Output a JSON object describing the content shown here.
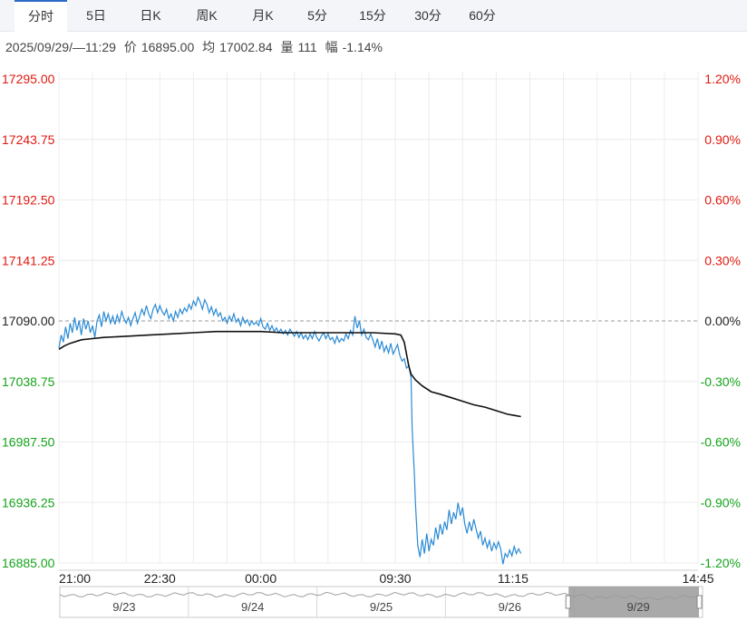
{
  "tabs": [
    {
      "label": "分时",
      "active": true
    },
    {
      "label": "5日",
      "active": false
    },
    {
      "label": "日K",
      "active": false
    },
    {
      "label": "周K",
      "active": false
    },
    {
      "label": "月K",
      "active": false
    },
    {
      "label": "5分",
      "active": false
    },
    {
      "label": "15分",
      "active": false
    },
    {
      "label": "30分",
      "active": false
    },
    {
      "label": "60分",
      "active": false
    }
  ],
  "info": {
    "datetime": "2025/09/29/—11:29",
    "price_label": "价",
    "price": "16895.00",
    "avg_label": "均",
    "avg": "17002.84",
    "volume_label": "量",
    "volume": "111",
    "change_label": "幅",
    "change": "-1.14%"
  },
  "colors": {
    "up": "#e0190f",
    "down": "#14a31a",
    "price_line": "#2a8ad4",
    "avg_line": "#111111",
    "grid": "#ececec",
    "navigator_fill": "#9a9a9a"
  },
  "chart_data": {
    "type": "line",
    "reference_price": 17090.0,
    "y_ticks_left": [
      "17295.00",
      "17243.75",
      "17192.50",
      "17141.25",
      "17090.00",
      "17038.75",
      "16987.50",
      "16936.25",
      "16885.00"
    ],
    "y_ticks_right": [
      "1.20%",
      "0.90%",
      "0.60%",
      "0.30%",
      "0.00%",
      "-0.30%",
      "-0.60%",
      "-0.90%",
      "-1.20%"
    ],
    "ylim": [
      16885.0,
      17295.0
    ],
    "x_tick_labels": [
      "21:00",
      "22:30",
      "00:00",
      "09:30",
      "11:15",
      "14:45"
    ],
    "session_total_minutes": 570,
    "x_tick_minutes": [
      0,
      90,
      180,
      300,
      405,
      570
    ],
    "series": [
      {
        "name": "",
        "points": [
          [
            0,
            17067
          ],
          [
            2,
            17078
          ],
          [
            4,
            17072
          ],
          [
            6,
            17085
          ],
          [
            8,
            17075
          ],
          [
            10,
            17088
          ],
          [
            12,
            17080
          ],
          [
            14,
            17093
          ],
          [
            16,
            17082
          ],
          [
            18,
            17090
          ],
          [
            20,
            17078
          ],
          [
            22,
            17092
          ],
          [
            24,
            17083
          ],
          [
            26,
            17090
          ],
          [
            28,
            17080
          ],
          [
            30,
            17086
          ],
          [
            32,
            17076
          ],
          [
            34,
            17090
          ],
          [
            36,
            17095
          ],
          [
            38,
            17085
          ],
          [
            40,
            17098
          ],
          [
            42,
            17090
          ],
          [
            44,
            17096
          ],
          [
            46,
            17088
          ],
          [
            48,
            17094
          ],
          [
            50,
            17087
          ],
          [
            52,
            17095
          ],
          [
            54,
            17089
          ],
          [
            56,
            17098
          ],
          [
            58,
            17092
          ],
          [
            60,
            17088
          ],
          [
            62,
            17093
          ],
          [
            64,
            17086
          ],
          [
            66,
            17092
          ],
          [
            68,
            17097
          ],
          [
            70,
            17088
          ],
          [
            72,
            17094
          ],
          [
            74,
            17100
          ],
          [
            76,
            17095
          ],
          [
            78,
            17103
          ],
          [
            80,
            17096
          ],
          [
            82,
            17092
          ],
          [
            84,
            17100
          ],
          [
            86,
            17104
          ],
          [
            88,
            17097
          ],
          [
            90,
            17103
          ],
          [
            92,
            17098
          ],
          [
            94,
            17095
          ],
          [
            96,
            17100
          ],
          [
            98,
            17092
          ],
          [
            100,
            17096
          ],
          [
            102,
            17090
          ],
          [
            104,
            17098
          ],
          [
            106,
            17093
          ],
          [
            108,
            17100
          ],
          [
            110,
            17096
          ],
          [
            112,
            17101
          ],
          [
            114,
            17098
          ],
          [
            116,
            17104
          ],
          [
            118,
            17100
          ],
          [
            120,
            17107
          ],
          [
            122,
            17103
          ],
          [
            124,
            17110
          ],
          [
            126,
            17106
          ],
          [
            128,
            17100
          ],
          [
            130,
            17108
          ],
          [
            132,
            17104
          ],
          [
            134,
            17097
          ],
          [
            136,
            17102
          ],
          [
            138,
            17095
          ],
          [
            140,
            17100
          ],
          [
            142,
            17094
          ],
          [
            144,
            17097
          ],
          [
            146,
            17090
          ],
          [
            148,
            17093
          ],
          [
            150,
            17088
          ],
          [
            152,
            17094
          ],
          [
            154,
            17090
          ],
          [
            156,
            17096
          ],
          [
            158,
            17089
          ],
          [
            160,
            17092
          ],
          [
            162,
            17086
          ],
          [
            164,
            17093
          ],
          [
            166,
            17088
          ],
          [
            168,
            17091
          ],
          [
            170,
            17086
          ],
          [
            172,
            17090
          ],
          [
            174,
            17087
          ],
          [
            176,
            17089
          ],
          [
            178,
            17086
          ],
          [
            180,
            17092
          ],
          [
            182,
            17085
          ],
          [
            184,
            17083
          ],
          [
            186,
            17088
          ],
          [
            188,
            17082
          ],
          [
            190,
            17086
          ],
          [
            192,
            17081
          ],
          [
            194,
            17084
          ],
          [
            196,
            17080
          ],
          [
            198,
            17083
          ],
          [
            200,
            17079
          ],
          [
            202,
            17082
          ],
          [
            204,
            17078
          ],
          [
            206,
            17083
          ],
          [
            208,
            17080
          ],
          [
            210,
            17077
          ],
          [
            212,
            17081
          ],
          [
            214,
            17076
          ],
          [
            216,
            17080
          ],
          [
            218,
            17075
          ],
          [
            220,
            17078
          ],
          [
            222,
            17074
          ],
          [
            224,
            17079
          ],
          [
            226,
            17075
          ],
          [
            228,
            17081
          ],
          [
            230,
            17076
          ],
          [
            232,
            17073
          ],
          [
            234,
            17077
          ],
          [
            236,
            17080
          ],
          [
            238,
            17075
          ],
          [
            240,
            17079
          ],
          [
            242,
            17074
          ],
          [
            244,
            17076
          ],
          [
            246,
            17071
          ],
          [
            248,
            17077
          ],
          [
            250,
            17072
          ],
          [
            252,
            17075
          ],
          [
            254,
            17073
          ],
          [
            256,
            17079
          ],
          [
            258,
            17075
          ],
          [
            260,
            17082
          ],
          [
            262,
            17078
          ],
          [
            264,
            17094
          ],
          [
            266,
            17084
          ],
          [
            268,
            17090
          ],
          [
            270,
            17078
          ],
          [
            272,
            17083
          ],
          [
            274,
            17076
          ],
          [
            276,
            17074
          ],
          [
            278,
            17079
          ],
          [
            280,
            17074
          ],
          [
            282,
            17068
          ],
          [
            284,
            17075
          ],
          [
            286,
            17066
          ],
          [
            288,
            17073
          ],
          [
            290,
            17064
          ],
          [
            292,
            17069
          ],
          [
            294,
            17063
          ],
          [
            296,
            17071
          ],
          [
            298,
            17062
          ],
          [
            300,
            17066
          ],
          [
            302,
            17070
          ],
          [
            304,
            17061
          ],
          [
            306,
            17056
          ],
          [
            308,
            17058
          ],
          [
            310,
            17050
          ],
          [
            312,
            17052
          ],
          [
            314,
            17042
          ],
          [
            315,
            17000
          ],
          [
            316,
            16980
          ],
          [
            317,
            16960
          ],
          [
            318,
            16935
          ],
          [
            320,
            16900
          ],
          [
            322,
            16890
          ],
          [
            324,
            16905
          ],
          [
            326,
            16893
          ],
          [
            328,
            16910
          ],
          [
            330,
            16895
          ],
          [
            332,
            16905
          ],
          [
            334,
            16900
          ],
          [
            336,
            16915
          ],
          [
            338,
            16905
          ],
          [
            340,
            16918
          ],
          [
            342,
            16909
          ],
          [
            344,
            16920
          ],
          [
            346,
            16913
          ],
          [
            348,
            16930
          ],
          [
            350,
            16918
          ],
          [
            352,
            16928
          ],
          [
            354,
            16922
          ],
          [
            356,
            16936
          ],
          [
            358,
            16925
          ],
          [
            360,
            16932
          ],
          [
            362,
            16918
          ],
          [
            364,
            16910
          ],
          [
            366,
            16920
          ],
          [
            368,
            16912
          ],
          [
            370,
            16922
          ],
          [
            372,
            16914
          ],
          [
            374,
            16906
          ],
          [
            376,
            16912
          ],
          [
            378,
            16900
          ],
          [
            380,
            16906
          ],
          [
            382,
            16898
          ],
          [
            384,
            16904
          ],
          [
            386,
            16895
          ],
          [
            388,
            16902
          ],
          [
            390,
            16897
          ],
          [
            392,
            16903
          ],
          [
            394,
            16897
          ],
          [
            396,
            16884
          ],
          [
            398,
            16893
          ],
          [
            400,
            16890
          ],
          [
            402,
            16896
          ],
          [
            404,
            16891
          ],
          [
            406,
            16899
          ],
          [
            408,
            16893
          ],
          [
            410,
            16897
          ],
          [
            412,
            16893
          ]
        ]
      },
      {
        "name": "",
        "points": [
          [
            0,
            17066
          ],
          [
            5,
            17069
          ],
          [
            10,
            17071
          ],
          [
            20,
            17074
          ],
          [
            30,
            17075
          ],
          [
            40,
            17076
          ],
          [
            60,
            17077
          ],
          [
            80,
            17078
          ],
          [
            100,
            17079
          ],
          [
            120,
            17080
          ],
          [
            140,
            17081
          ],
          [
            160,
            17081
          ],
          [
            180,
            17081
          ],
          [
            200,
            17080
          ],
          [
            220,
            17080
          ],
          [
            240,
            17080
          ],
          [
            260,
            17080
          ],
          [
            280,
            17080
          ],
          [
            300,
            17079
          ],
          [
            305,
            17078
          ],
          [
            308,
            17072
          ],
          [
            310,
            17062
          ],
          [
            312,
            17052
          ],
          [
            314,
            17045
          ],
          [
            318,
            17040
          ],
          [
            324,
            17035
          ],
          [
            332,
            17030
          ],
          [
            340,
            17028
          ],
          [
            350,
            17025
          ],
          [
            360,
            17022
          ],
          [
            370,
            17019
          ],
          [
            380,
            17017
          ],
          [
            390,
            17014
          ],
          [
            400,
            17011
          ],
          [
            406,
            17010
          ],
          [
            412,
            17009
          ]
        ]
      }
    ],
    "navigator_labels": [
      "9/23",
      "9/24",
      "9/25",
      "9/26",
      "9/29"
    ]
  }
}
